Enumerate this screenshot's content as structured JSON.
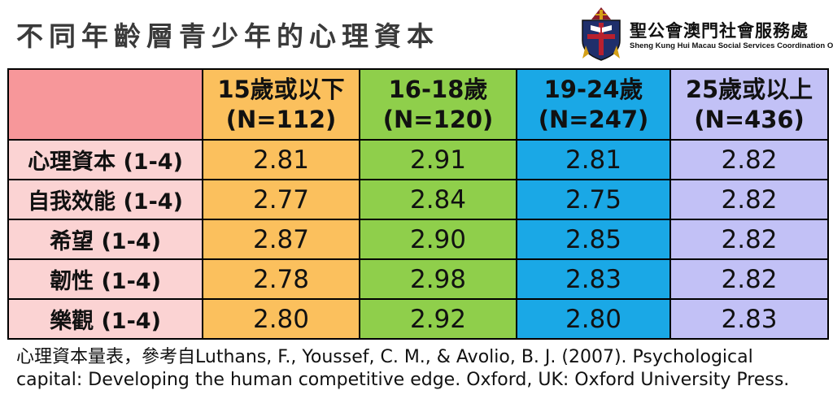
{
  "title": "不同年齡層青少年的心理資本",
  "org": {
    "name_zh": "聖公會澳門社會服務處",
    "name_en": "Sheng Kung Hui Macau Social Services Coordination Office"
  },
  "table": {
    "columns": [
      {
        "line1": "15歲或以下",
        "line2": "(N=112)"
      },
      {
        "line1": "16-18歲",
        "line2": "(N=120)"
      },
      {
        "line1": "19-24歲",
        "line2": "(N=247)"
      },
      {
        "line1": "25歲或以上",
        "line2": "(N=436)"
      }
    ],
    "rows": [
      {
        "label": "心理資本 (1-4)",
        "values": [
          "2.81",
          "2.91",
          "2.81",
          "2.82"
        ]
      },
      {
        "label": "自我效能 (1-4)",
        "values": [
          "2.77",
          "2.84",
          "2.75",
          "2.82"
        ]
      },
      {
        "label": "希望 (1-4)",
        "values": [
          "2.87",
          "2.90",
          "2.85",
          "2.82"
        ]
      },
      {
        "label": "韌性 (1-4)",
        "values": [
          "2.78",
          "2.98",
          "2.83",
          "2.82"
        ]
      },
      {
        "label": "樂觀 (1-4)",
        "values": [
          "2.80",
          "2.92",
          "2.80",
          "2.83"
        ]
      }
    ],
    "colors": {
      "corner": "#f7979a",
      "row_label": "#fbd3d3",
      "col1": "#fbc05d",
      "col2": "#8fcf4b",
      "col3": "#1aa8e6",
      "col4": "#c2c1f6"
    }
  },
  "footnote": {
    "line1": "心理資本量表，參考自Luthans, F., Youssef, C. M., & Avolio, B. J. (2007). Psychological",
    "line2": "capital: Developing the human competitive edge. Oxford, UK: Oxford University Press."
  }
}
